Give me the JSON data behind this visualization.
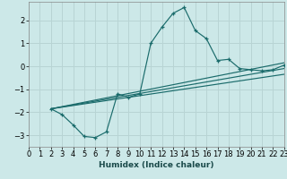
{
  "xlabel": "Humidex (Indice chaleur)",
  "bg_color": "#cce8e8",
  "grid_color": "#b8d4d4",
  "line_color": "#1a6b6b",
  "xlim": [
    0,
    23
  ],
  "ylim": [
    -3.5,
    2.8
  ],
  "xticks": [
    0,
    1,
    2,
    3,
    4,
    5,
    6,
    7,
    8,
    9,
    10,
    11,
    12,
    13,
    14,
    15,
    16,
    17,
    18,
    19,
    20,
    21,
    22,
    23
  ],
  "yticks": [
    -3,
    -2,
    -1,
    0,
    1,
    2
  ],
  "line1_x": [
    2,
    3,
    4,
    5,
    6,
    7,
    8,
    9,
    10,
    11,
    12,
    13,
    14,
    15,
    16,
    17,
    18,
    19,
    20,
    21,
    22,
    23
  ],
  "line1_y": [
    -1.85,
    -2.1,
    -2.55,
    -3.05,
    -3.1,
    -2.85,
    -1.2,
    -1.35,
    -1.2,
    1.0,
    1.7,
    2.3,
    2.55,
    1.55,
    1.2,
    0.25,
    0.3,
    -0.1,
    -0.15,
    -0.2,
    -0.15,
    0.05
  ],
  "line2_x": [
    2,
    23
  ],
  "line2_y": [
    -1.85,
    0.15
  ],
  "line3_x": [
    2,
    23
  ],
  "line3_y": [
    -1.85,
    -0.1
  ],
  "line4_x": [
    2,
    23
  ],
  "line4_y": [
    -1.85,
    -0.35
  ],
  "xlabel_fontsize": 6.5,
  "tick_fontsize": 6
}
